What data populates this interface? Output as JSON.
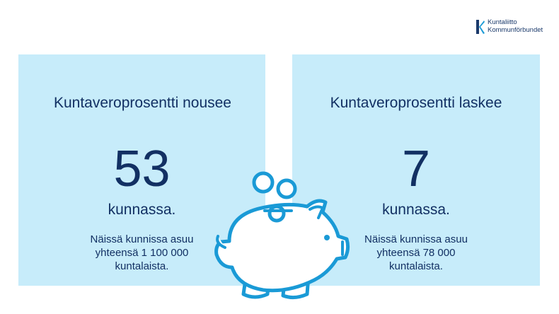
{
  "logo": {
    "line1": "Kuntaliitto",
    "line2": "Kommunförbundet"
  },
  "left_panel": {
    "title": "Kuntaveroprosentti nousee",
    "number": "53",
    "unit": "kunnassa.",
    "desc_line1": "Näissä kunnissa asuu",
    "desc_line2": "yhteensä 1 100 000",
    "desc_line3": "kuntalaista."
  },
  "right_panel": {
    "title": "Kuntaveroprosentti laskee",
    "number": "7",
    "unit": "kunnassa.",
    "desc_line1": "Näissä kunnissa asuu",
    "desc_line2": "yhteensä 78 000",
    "desc_line3": "kuntalaista."
  },
  "illustration": {
    "icon": "piggy-bank-icon",
    "stroke_color": "#1a9ad6",
    "fill_color": "#ffffff"
  },
  "colors": {
    "panel_background": "#c7ecfa",
    "text": "#123063",
    "logo_text": "#1b3a6b"
  }
}
